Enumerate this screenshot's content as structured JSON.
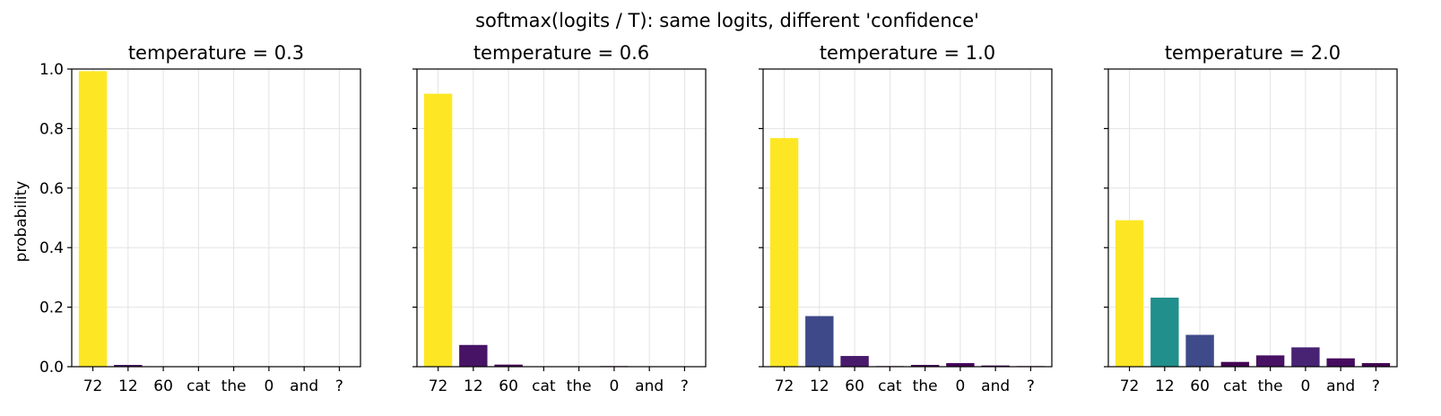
{
  "chart_data": {
    "type": "bar",
    "suptitle": "softmax(logits / T): same logits, different 'confidence'",
    "ylabel": "probability",
    "ylim": [
      0,
      1.0
    ],
    "yticks": [
      "0.0",
      "0.2",
      "0.4",
      "0.6",
      "0.8",
      "1.0"
    ],
    "grid": true,
    "sharey": true,
    "colormap": "viridis",
    "categories": [
      "72",
      "12",
      "60",
      "cat",
      "the",
      "0",
      "and",
      "?"
    ],
    "panels": [
      {
        "title": "temperature = 0.3",
        "values": [
          0.993,
          0.006,
          0.0005,
          0.0,
          0.0001,
          0.0003,
          0.0001,
          0.0
        ],
        "colors": [
          "#fde725",
          "#481668",
          "#440154",
          "#440154",
          "#440154",
          "#440154",
          "#440154",
          "#440154"
        ]
      },
      {
        "title": "temperature = 0.6",
        "values": [
          0.917,
          0.073,
          0.007,
          0.0002,
          0.0008,
          0.002,
          0.0005,
          0.0002
        ],
        "colors": [
          "#fde725",
          "#471365",
          "#440154",
          "#440154",
          "#440154",
          "#440154",
          "#440154",
          "#440154"
        ]
      },
      {
        "title": "temperature = 1.0",
        "values": [
          0.768,
          0.17,
          0.036,
          0.002,
          0.006,
          0.012,
          0.004,
          0.002
        ],
        "colors": [
          "#fde725",
          "#3e4989",
          "#481a6c",
          "#440154",
          "#440256",
          "#450559",
          "#440256",
          "#440154"
        ]
      },
      {
        "title": "temperature = 2.0",
        "values": [
          0.492,
          0.232,
          0.107,
          0.016,
          0.038,
          0.065,
          0.028,
          0.012
        ],
        "colors": [
          "#fde725",
          "#218f8c",
          "#3e4a89",
          "#440154",
          "#471164",
          "#482374",
          "#460b5e",
          "#440154"
        ]
      }
    ]
  }
}
